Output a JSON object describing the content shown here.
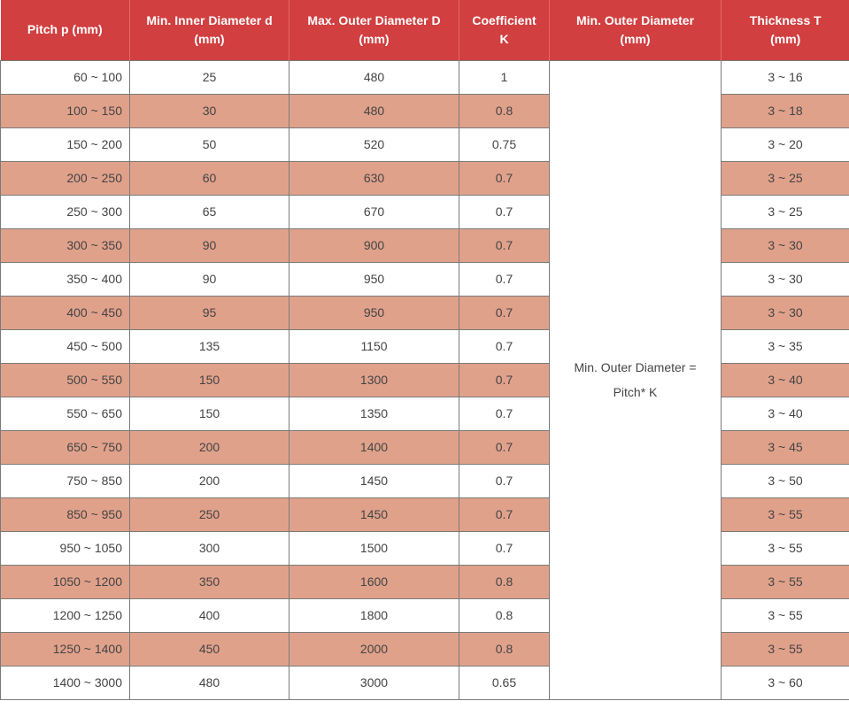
{
  "table": {
    "headers": [
      [
        "Pitch p (mm)"
      ],
      [
        "Min. Inner Diameter d",
        "(mm)"
      ],
      [
        "Max. Outer Diameter D",
        "(mm)"
      ],
      [
        "Coefficient",
        "K"
      ],
      [
        "Min. Outer Diameter",
        "(mm)"
      ],
      [
        "Thickness T",
        "(mm)"
      ]
    ],
    "merged_note": [
      "Min. Outer Diameter =",
      "Pitch* K"
    ],
    "rows": [
      {
        "pitch": "60 ~ 100",
        "inner": "25",
        "outer": "480",
        "k": "1",
        "thickness": "3 ~ 16"
      },
      {
        "pitch": "100 ~ 150",
        "inner": "30",
        "outer": "480",
        "k": "0.8",
        "thickness": "3 ~ 18"
      },
      {
        "pitch": "150 ~ 200",
        "inner": "50",
        "outer": "520",
        "k": "0.75",
        "thickness": "3 ~ 20"
      },
      {
        "pitch": "200 ~ 250",
        "inner": "60",
        "outer": "630",
        "k": "0.7",
        "thickness": "3 ~ 25"
      },
      {
        "pitch": "250 ~ 300",
        "inner": "65",
        "outer": "670",
        "k": "0.7",
        "thickness": "3 ~ 25"
      },
      {
        "pitch": "300 ~ 350",
        "inner": "90",
        "outer": "900",
        "k": "0.7",
        "thickness": "3 ~ 30"
      },
      {
        "pitch": "350 ~ 400",
        "inner": "90",
        "outer": "950",
        "k": "0.7",
        "thickness": "3 ~ 30"
      },
      {
        "pitch": "400 ~ 450",
        "inner": "95",
        "outer": "950",
        "k": "0.7",
        "thickness": "3 ~ 30"
      },
      {
        "pitch": "450 ~ 500",
        "inner": "135",
        "outer": "1150",
        "k": "0.7",
        "thickness": "3 ~ 35"
      },
      {
        "pitch": "500 ~ 550",
        "inner": "150",
        "outer": "1300",
        "k": "0.7",
        "thickness": "3 ~ 40"
      },
      {
        "pitch": "550 ~ 650",
        "inner": "150",
        "outer": "1350",
        "k": "0.7",
        "thickness": "3 ~ 40"
      },
      {
        "pitch": "650 ~ 750",
        "inner": "200",
        "outer": "1400",
        "k": "0.7",
        "thickness": "3 ~ 45"
      },
      {
        "pitch": "750 ~ 850",
        "inner": "200",
        "outer": "1450",
        "k": "0.7",
        "thickness": "3 ~ 50"
      },
      {
        "pitch": "850 ~ 950",
        "inner": "250",
        "outer": "1450",
        "k": "0.7",
        "thickness": "3 ~ 55"
      },
      {
        "pitch": "950 ~ 1050",
        "inner": "300",
        "outer": "1500",
        "k": "0.7",
        "thickness": "3 ~ 55"
      },
      {
        "pitch": "1050 ~ 1200",
        "inner": "350",
        "outer": "1600",
        "k": "0.8",
        "thickness": "3 ~ 55"
      },
      {
        "pitch": "1200 ~ 1250",
        "inner": "400",
        "outer": "1800",
        "k": "0.8",
        "thickness": "3 ~ 55"
      },
      {
        "pitch": "1250 ~ 1400",
        "inner": "450",
        "outer": "2000",
        "k": "0.8",
        "thickness": "3 ~ 55"
      },
      {
        "pitch": "1400 ~ 3000",
        "inner": "480",
        "outer": "3000",
        "k": "0.65",
        "thickness": "3 ~ 60"
      }
    ]
  },
  "colors": {
    "header_bg": "#d13f40",
    "alt_row_bg": "#e0a18b",
    "row_bg": "#ffffff"
  }
}
